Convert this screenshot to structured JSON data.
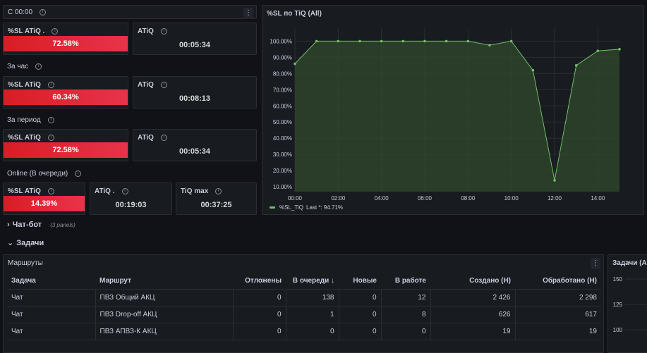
{
  "top_row": {
    "label": "С 00:00",
    "menu": "⋮"
  },
  "stats": [
    {
      "title": "%SL ATiQ .",
      "value": "72.58%"
    },
    {
      "title": "ATiQ",
      "value": "00:05:34"
    },
    {
      "section": "За час"
    },
    {
      "title": "%SL ATiQ",
      "value": "60.34%"
    },
    {
      "title": "ATiQ",
      "value": "00:08:13"
    },
    {
      "section": "За период"
    },
    {
      "title": "%SL ATiQ",
      "value": "72.58%"
    },
    {
      "title": "ATiQ",
      "value": "00:05:34"
    },
    {
      "section": "Online (В очереди)"
    },
    {
      "title": "%SL ATiQ",
      "value": "14.39%"
    },
    {
      "title": "ATiQ .",
      "value": "00:19:03"
    },
    {
      "title": "TiQ max",
      "value": "00:37:25"
    }
  ],
  "chart_panel": {
    "title": "%SL по TiQ (All)",
    "legend_name": "%SL_TiQ",
    "legend_last": "Last *: 94.71%"
  },
  "chart_data": {
    "type": "area",
    "x": [
      "00:00",
      "01:00",
      "02:00",
      "03:00",
      "04:00",
      "05:00",
      "06:00",
      "07:00",
      "08:00",
      "09:00",
      "10:00",
      "11:00",
      "12:00",
      "13:00",
      "14:00",
      "15:00"
    ],
    "series": [
      {
        "name": "%SL_TiQ",
        "values": [
          86,
          100,
          100,
          100,
          100,
          100,
          100,
          100,
          100,
          97.5,
          100,
          82,
          14,
          85,
          94,
          95
        ]
      }
    ],
    "x_ticks": [
      "00:00",
      "02:00",
      "04:00",
      "06:00",
      "08:00",
      "10:00",
      "12:00",
      "14:00"
    ],
    "y_ticks": [
      "10.00%",
      "20.00%",
      "30.00%",
      "40.00%",
      "50.00%",
      "60.00%",
      "70.00%",
      "80.00%",
      "90.00%",
      "100.00%"
    ],
    "ylim": [
      7,
      108
    ],
    "color": "#73bf69",
    "fill": "#2f4a2d"
  },
  "sections": {
    "chatbot": {
      "label": "Чат-бот",
      "sub": "(3 panels)"
    },
    "tasks": {
      "label": "Задачи"
    }
  },
  "routes": {
    "title": "Маршруты",
    "menu": "⋮",
    "columns": [
      "Задача",
      "Маршрут",
      "Отложены",
      "В очереди ↓",
      "Новые",
      "В работе",
      "Создано (Н)",
      "Обработано (Н)"
    ],
    "rows": [
      [
        "Чат",
        "ПВЗ Общий АКЦ",
        "0",
        "138",
        "0",
        "12",
        "2 426",
        "2 298"
      ],
      [
        "Чат",
        "ПВЗ Drop-off АКЦ",
        "0",
        "1",
        "0",
        "8",
        "626",
        "617"
      ],
      [
        "Чат",
        "ПВЗ АПВЗ-К АКЦ",
        "0",
        "0",
        "0",
        "0",
        "19",
        "19"
      ]
    ]
  },
  "side_chart": {
    "title": "Задачи (All",
    "y_ticks": [
      "150",
      "125",
      "100"
    ]
  }
}
